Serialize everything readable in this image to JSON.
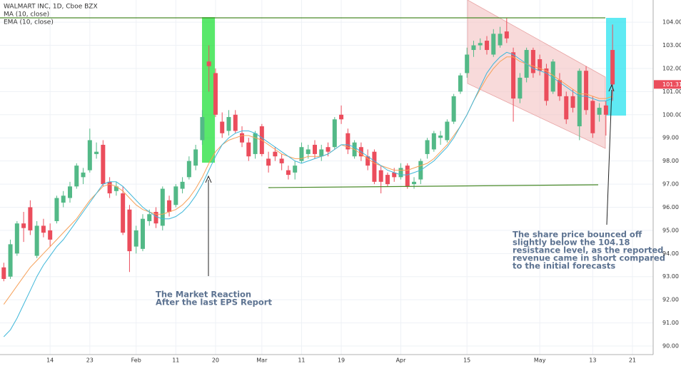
{
  "chart_data": {
    "type": "candlestick",
    "title": "WALMART INC, 1D, Cboe BZX",
    "categories": [
      null,
      null,
      null,
      null,
      null,
      null,
      null,
      "14",
      null,
      null,
      null,
      null,
      null,
      "23",
      null,
      null,
      null,
      null,
      null,
      null,
      "Feb",
      null,
      null,
      null,
      null,
      null,
      "11",
      null,
      null,
      null,
      null,
      null,
      "20",
      null,
      null,
      null,
      null,
      null,
      null,
      "Mar",
      null,
      null,
      null,
      null,
      null,
      "11",
      null,
      null,
      null,
      null,
      null,
      "19",
      null,
      null,
      null,
      null,
      null,
      null,
      null,
      null,
      "Apr",
      null,
      null,
      null,
      null,
      null,
      null,
      null,
      null,
      null,
      "15",
      null,
      null,
      null,
      null,
      null,
      null,
      null,
      null,
      null,
      null,
      "May",
      null,
      null,
      null,
      null,
      null,
      null,
      null,
      "13",
      null,
      null,
      null,
      null,
      null,
      "21"
    ],
    "open": [
      93.4,
      93.0,
      94.0,
      95.3,
      96.0,
      93.9,
      95.2,
      95.0,
      95.4,
      96.2,
      96.4,
      96.9,
      97.3,
      97.6,
      98.3,
      98.7,
      97.1,
      96.7,
      96.6,
      95.9,
      94.3,
      94.2,
      95.4,
      95.8,
      95.2,
      96.3,
      96.1,
      96.8,
      97.3,
      97.8,
      98.9,
      102.3,
      101.8,
      99.7,
      99.3,
      100.0,
      99.2,
      98.8,
      98.3,
      99.5,
      98.1,
      98.4,
      98.1,
      97.6,
      97.5,
      98.0,
      98.3,
      98.7,
      98.2,
      98.6,
      98.6,
      100.0,
      99.2,
      98.2,
      98.6,
      98.2,
      98.4,
      97.6,
      97.4,
      97.5,
      97.3,
      97.8,
      97.0,
      97.2,
      98.3,
      98.5,
      99.0,
      98.9,
      99.7,
      101.0,
      101.8,
      102.8,
      103.0,
      103.2,
      102.6,
      103.0,
      103.6,
      102.7,
      100.7,
      101.6,
      102.8,
      102.4,
      102.0,
      101.0,
      101.5,
      100.8,
      100.8,
      99.5,
      101.9,
      100.6,
      100.0,
      100.4,
      102.8,
      null,
      null,
      null
    ],
    "high": [
      93.6,
      94.6,
      95.4,
      95.8,
      96.3,
      95.4,
      95.5,
      95.3,
      96.5,
      96.7,
      97.1,
      97.9,
      97.7,
      99.4,
      98.8,
      98.9,
      97.3,
      97.1,
      96.9,
      96.1,
      95.2,
      95.7,
      95.9,
      96.0,
      96.9,
      96.5,
      97.0,
      97.3,
      98.2,
      98.7,
      100.2,
      103.0,
      102.0,
      100.1,
      100.2,
      100.2,
      99.5,
      99.0,
      99.3,
      99.6,
      98.4,
      98.6,
      98.3,
      97.8,
      98.0,
      98.8,
      98.7,
      98.9,
      98.7,
      98.8,
      99.9,
      100.4,
      99.4,
      98.9,
      98.8,
      98.5,
      98.5,
      97.8,
      97.5,
      97.7,
      97.9,
      97.9,
      97.3,
      98.1,
      99.0,
      99.3,
      99.3,
      99.8,
      100.9,
      101.8,
      102.9,
      103.2,
      103.3,
      103.4,
      103.7,
      103.8,
      104.2,
      102.9,
      101.8,
      102.9,
      102.9,
      102.6,
      102.2,
      102.4,
      101.8,
      101.0,
      101.1,
      102.0,
      102.1,
      100.8,
      100.5,
      100.6,
      103.9,
      null,
      null,
      null
    ],
    "low": [
      92.8,
      92.9,
      93.9,
      94.5,
      94.8,
      93.8,
      94.7,
      94.3,
      95.3,
      96.0,
      96.2,
      96.8,
      97.0,
      97.5,
      98.1,
      96.9,
      96.4,
      96.5,
      94.8,
      93.2,
      94.0,
      94.1,
      95.2,
      95.1,
      95.0,
      95.6,
      96.0,
      96.6,
      97.2,
      97.6,
      98.7,
      101.0,
      99.9,
      99.0,
      99.1,
      99.2,
      98.6,
      98.0,
      98.1,
      98.2,
      97.5,
      98.0,
      97.6,
      97.2,
      97.2,
      97.9,
      98.1,
      98.1,
      98.0,
      98.2,
      98.5,
      99.6,
      98.3,
      98.1,
      98.0,
      97.6,
      97.0,
      96.6,
      96.9,
      97.1,
      97.2,
      96.8,
      96.8,
      97.0,
      98.1,
      98.4,
      98.7,
      98.8,
      99.6,
      100.9,
      101.6,
      102.5,
      102.8,
      102.6,
      102.5,
      102.9,
      103.1,
      99.7,
      100.5,
      101.4,
      101.6,
      101.7,
      100.4,
      100.9,
      100.6,
      99.6,
      100.1,
      98.9,
      100.0,
      99.0,
      99.7,
      99.1,
      100.6,
      null,
      null,
      null
    ],
    "close": [
      92.9,
      94.4,
      95.3,
      95.1,
      95.0,
      95.2,
      94.9,
      94.6,
      96.4,
      96.5,
      96.9,
      97.8,
      97.5,
      98.9,
      98.4,
      97.0,
      96.6,
      96.9,
      94.9,
      94.1,
      95.0,
      95.5,
      95.7,
      95.3,
      96.8,
      95.8,
      96.9,
      97.1,
      98.0,
      98.5,
      99.9,
      102.1,
      100.0,
      99.2,
      99.9,
      99.3,
      98.8,
      98.2,
      99.2,
      98.3,
      97.8,
      98.2,
      97.9,
      97.4,
      97.8,
      98.6,
      98.5,
      98.3,
      98.5,
      98.4,
      99.8,
      99.8,
      98.5,
      98.8,
      98.2,
      97.8,
      97.1,
      97.1,
      97.0,
      97.3,
      97.7,
      96.9,
      97.1,
      98.0,
      98.9,
      99.2,
      99.1,
      99.7,
      100.8,
      101.7,
      102.6,
      103.0,
      103.1,
      102.8,
      103.5,
      103.5,
      103.3,
      100.7,
      101.6,
      102.8,
      101.8,
      101.9,
      100.6,
      102.3,
      100.8,
      99.8,
      100.3,
      101.9,
      100.2,
      99.2,
      100.3,
      100.0,
      101.31,
      null,
      null,
      null
    ],
    "up_color": "#53b987",
    "down_color": "#eb4d5c",
    "series": [
      {
        "name": "MA (10, close)",
        "color": "#f6a15a",
        "values": [
          91.8,
          92.2,
          92.6,
          93.0,
          93.4,
          93.7,
          94.0,
          94.3,
          94.6,
          94.9,
          95.2,
          95.5,
          95.9,
          96.3,
          96.6,
          96.9,
          97.0,
          96.9,
          96.7,
          96.4,
          96.1,
          95.9,
          95.8,
          95.7,
          95.7,
          95.8,
          95.9,
          96.1,
          96.4,
          96.8,
          97.3,
          97.9,
          98.4,
          98.7,
          98.9,
          99.0,
          99.1,
          99.1,
          99.0,
          98.9,
          98.7,
          98.5,
          98.3,
          98.2,
          98.1,
          98.1,
          98.2,
          98.2,
          98.2,
          98.3,
          98.5,
          98.7,
          98.6,
          98.5,
          98.3,
          98.1,
          97.9,
          97.8,
          97.7,
          97.6,
          97.6,
          97.6,
          97.7,
          97.8,
          97.9,
          98.1,
          98.4,
          98.7,
          99.1,
          99.5,
          100.0,
          100.6,
          101.1,
          101.6,
          102.0,
          102.3,
          102.5,
          102.5,
          102.3,
          102.2,
          102.1,
          102.0,
          101.9,
          101.7,
          101.5,
          101.3,
          101.1,
          100.9,
          100.9,
          100.8,
          100.7,
          100.7,
          100.8,
          null,
          null,
          null
        ]
      },
      {
        "name": "EMA (10, close)",
        "color": "#3fb7d9",
        "values": [
          90.4,
          90.7,
          91.2,
          91.8,
          92.4,
          93.0,
          93.5,
          93.9,
          94.3,
          94.6,
          95.0,
          95.4,
          95.8,
          96.2,
          96.6,
          97.0,
          97.1,
          97.1,
          96.9,
          96.6,
          96.3,
          96.0,
          95.8,
          95.6,
          95.5,
          95.5,
          95.6,
          95.8,
          96.1,
          96.5,
          97.0,
          97.6,
          98.2,
          98.7,
          99.0,
          99.2,
          99.3,
          99.3,
          99.2,
          99.0,
          98.8,
          98.6,
          98.4,
          98.2,
          98.0,
          97.9,
          98.0,
          98.1,
          98.2,
          98.3,
          98.5,
          98.7,
          98.7,
          98.6,
          98.4,
          98.2,
          98.0,
          97.8,
          97.6,
          97.5,
          97.4,
          97.4,
          97.5,
          97.6,
          97.8,
          98.0,
          98.3,
          98.6,
          99.0,
          99.5,
          100.0,
          100.6,
          101.2,
          101.8,
          102.2,
          102.5,
          102.7,
          102.6,
          102.4,
          102.2,
          102.0,
          101.9,
          101.8,
          101.6,
          101.4,
          101.2,
          101.0,
          100.8,
          100.8,
          100.7,
          100.6,
          100.6,
          100.7,
          null,
          null,
          null
        ]
      }
    ],
    "ylim": [
      89.63,
      104.96
    ],
    "yticks": [
      {
        "value": 90,
        "label": "90.00"
      },
      {
        "value": 91,
        "label": "91.00"
      },
      {
        "value": 92,
        "label": "92.00"
      },
      {
        "value": 93,
        "label": "93.00"
      },
      {
        "value": 94,
        "label": "94.00"
      },
      {
        "value": 95,
        "label": "95.00"
      },
      {
        "value": 96,
        "label": "96.00"
      },
      {
        "value": 97,
        "label": "97.00"
      },
      {
        "value": 98,
        "label": "98.00"
      },
      {
        "value": 99,
        "label": "99.00"
      },
      {
        "value": 100,
        "label": "100.00"
      },
      {
        "value": 101,
        "label": "101.00"
      },
      {
        "value": 102,
        "label": "102.00"
      },
      {
        "value": 103,
        "label": "103.00"
      },
      {
        "value": 104,
        "label": "104.00"
      }
    ],
    "grid": true,
    "last_price": 101.31,
    "annotations": [
      {
        "lines": [
          "The Market Reaction",
          "After the last EPS Report"
        ]
      },
      {
        "lines": [
          "The share price bounced off",
          "slightly below the 104.18",
          "resistance level, as the reported",
          "revenue came in short compared",
          "to the initial forecasts"
        ]
      }
    ]
  }
}
